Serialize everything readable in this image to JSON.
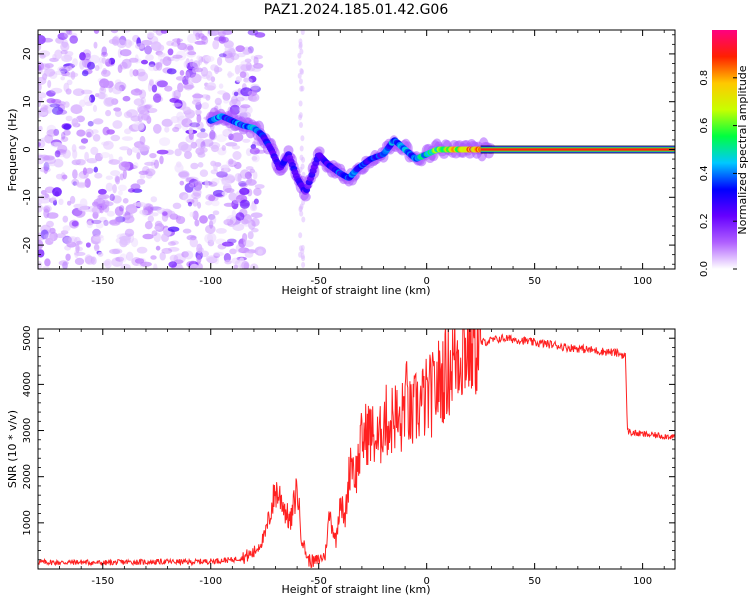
{
  "title": "PAZ1.2024.185.01.42.G06",
  "chart_data": [
    {
      "type": "heatmap",
      "xlabel": "Height of straight line (km)",
      "ylabel": "Frequency (Hz)",
      "xlim": [
        -180,
        115
      ],
      "ylim": [
        -25,
        25
      ],
      "xticks": [
        -150,
        -100,
        -50,
        0,
        50,
        100
      ],
      "xtick_labels": [
        "-150",
        "-100",
        "-50",
        "0",
        "50",
        "100"
      ],
      "yticks": [
        -20,
        -10,
        0,
        10,
        20
      ],
      "ytick_labels": [
        "-20",
        "-10",
        "0",
        "10",
        "20"
      ],
      "colorbar": {
        "label": "Normalized spectral amplitude",
        "range": [
          0,
          1
        ],
        "ticks": [
          0.0,
          0.2,
          0.4,
          0.6,
          0.8
        ],
        "tick_labels": [
          "0.0",
          "0.2",
          "0.4",
          "0.6",
          "0.8"
        ],
        "colormap": [
          "#ffffff",
          "#b060ff",
          "#6600ff",
          "#0000ff",
          "#00c8ff",
          "#00ff40",
          "#c8ff00",
          "#ffc800",
          "#ff2000",
          "#ff0080"
        ]
      },
      "noise_region_x": [
        -180,
        -85
      ],
      "ridge": [
        {
          "x": -100,
          "y": 6,
          "amp": 0.35
        },
        {
          "x": -95,
          "y": 7,
          "amp": 0.4
        },
        {
          "x": -90,
          "y": 6,
          "amp": 0.35
        },
        {
          "x": -85,
          "y": 5,
          "amp": 0.4
        },
        {
          "x": -80,
          "y": 4.5,
          "amp": 0.4
        },
        {
          "x": -76,
          "y": 3,
          "amp": 0.35
        },
        {
          "x": -72,
          "y": 0,
          "amp": 0.3
        },
        {
          "x": -68,
          "y": -4,
          "amp": 0.3
        },
        {
          "x": -64,
          "y": -1,
          "amp": 0.3
        },
        {
          "x": -60,
          "y": -6,
          "amp": 0.25
        },
        {
          "x": -56,
          "y": -9,
          "amp": 0.25
        },
        {
          "x": -50,
          "y": -1,
          "amp": 0.3
        },
        {
          "x": -46,
          "y": -3,
          "amp": 0.3
        },
        {
          "x": -40,
          "y": -5,
          "amp": 0.35
        },
        {
          "x": -36,
          "y": -6,
          "amp": 0.4
        },
        {
          "x": -32,
          "y": -4,
          "amp": 0.35
        },
        {
          "x": -26,
          "y": -2,
          "amp": 0.35
        },
        {
          "x": -20,
          "y": -1,
          "amp": 0.35
        },
        {
          "x": -15,
          "y": 2,
          "amp": 0.4
        },
        {
          "x": -10,
          "y": 0,
          "amp": 0.4
        },
        {
          "x": -5,
          "y": -2,
          "amp": 0.45
        },
        {
          "x": 0,
          "y": -1,
          "amp": 0.5
        },
        {
          "x": 5,
          "y": 0,
          "amp": 0.6
        },
        {
          "x": 10,
          "y": 0,
          "amp": 0.7
        },
        {
          "x": 20,
          "y": 0,
          "amp": 0.85
        },
        {
          "x": 30,
          "y": 0,
          "amp": 0.95
        },
        {
          "x": 115,
          "y": 0,
          "amp": 0.95
        }
      ]
    },
    {
      "type": "line",
      "xlabel": "Height of straight line (km)",
      "ylabel": "SNR (10 * v/v)",
      "xlim": [
        -180,
        115
      ],
      "ylim": [
        0,
        5200
      ],
      "xticks": [
        -150,
        -100,
        -50,
        0,
        50,
        100
      ],
      "xtick_labels": [
        "-150",
        "-100",
        "-50",
        "0",
        "50",
        "100"
      ],
      "yticks": [
        1000,
        2000,
        3000,
        4000,
        5000
      ],
      "ytick_labels": [
        "1000",
        "2000",
        "3000",
        "4000",
        "5000"
      ],
      "color": "#ff0000",
      "series": [
        {
          "x": [
            -180,
            -170,
            -160,
            -150,
            -140,
            -130,
            -120,
            -110,
            -100,
            -90,
            -85,
            -80,
            -75,
            -72,
            -70,
            -67,
            -65,
            -63,
            -60,
            -58,
            -55,
            -52,
            -50,
            -47,
            -45,
            -42,
            -40,
            -38,
            -35,
            -33,
            -30,
            -27,
            -25,
            -22,
            -20,
            -17,
            -15,
            -12,
            -10,
            -7,
            -5,
            -2,
            0,
            3,
            5,
            8,
            10,
            12,
            15,
            18,
            20,
            25,
            30,
            35,
            40,
            45,
            50,
            55,
            60,
            65,
            70,
            75,
            80,
            85,
            88,
            90,
            92,
            93,
            95,
            100,
            105,
            110,
            115
          ],
          "y": [
            150,
            140,
            150,
            130,
            150,
            150,
            160,
            150,
            170,
            200,
            250,
            350,
            700,
            1300,
            1700,
            1500,
            1200,
            1000,
            1800,
            700,
            200,
            150,
            200,
            300,
            1200,
            600,
            1600,
            1000,
            2500,
            2000,
            2800,
            3000,
            2900,
            2700,
            3300,
            3100,
            3400,
            3000,
            3800,
            3200,
            3500,
            3600,
            3700,
            3800,
            4000,
            4200,
            4300,
            4500,
            4700,
            4800,
            4850,
            4900,
            4950,
            5000,
            4980,
            4950,
            4900,
            4880,
            4850,
            4800,
            4780,
            4750,
            4720,
            4700,
            4680,
            4650,
            4620,
            3000,
            2950,
            2920,
            2900,
            2880,
            2870
          ]
        }
      ]
    }
  ]
}
